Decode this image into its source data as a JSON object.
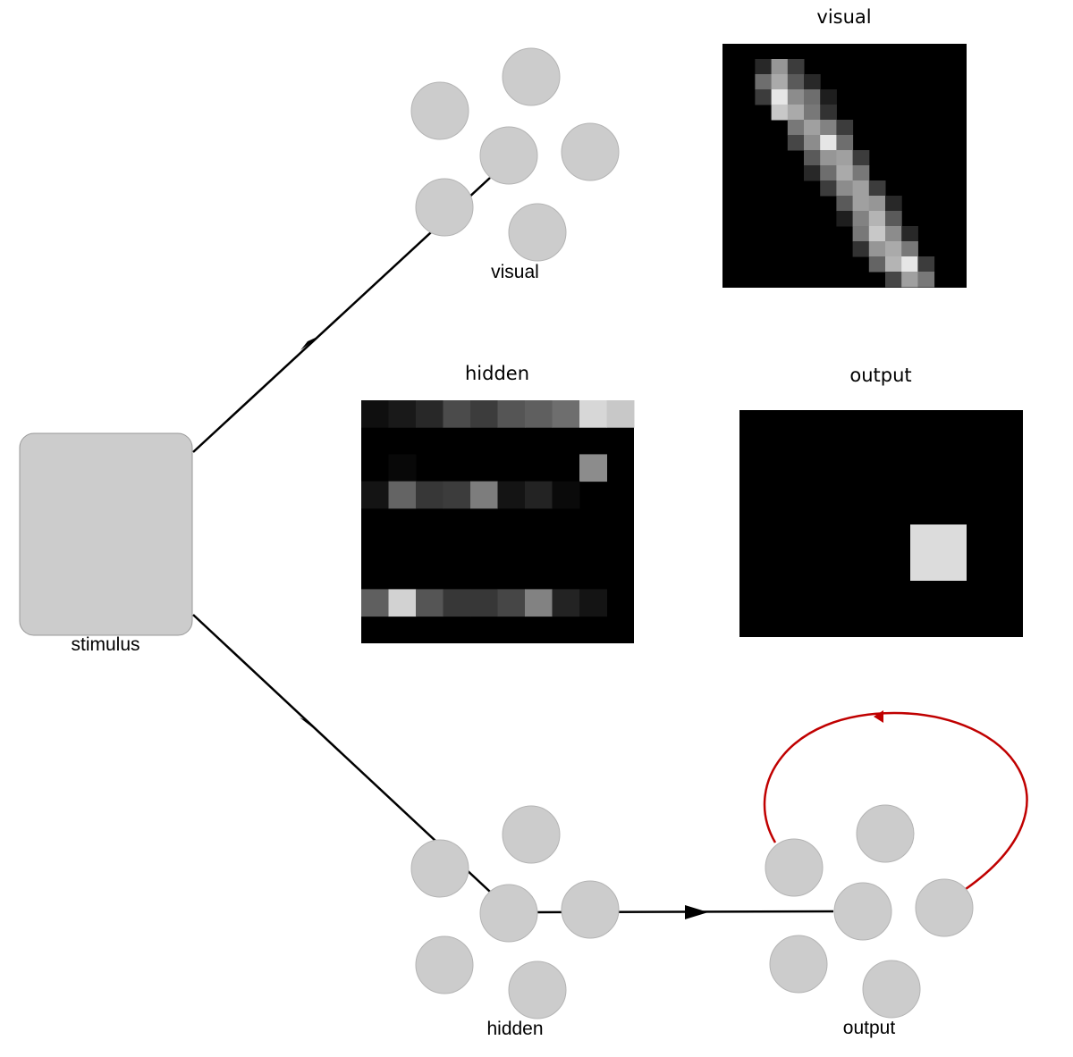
{
  "nodes": {
    "stimulus": {
      "label": "stimulus"
    },
    "visual": {
      "label": "visual"
    },
    "hidden": {
      "label": "hidden"
    },
    "output": {
      "label": "output"
    }
  },
  "panels": {
    "visual": {
      "title": "visual"
    },
    "hidden": {
      "title": "hidden"
    },
    "output": {
      "title": "output"
    }
  },
  "colors": {
    "neuron": "#cccccc",
    "edge": "#000000",
    "recurrent_edge": "#c00000",
    "panel_background": "#000000"
  }
}
